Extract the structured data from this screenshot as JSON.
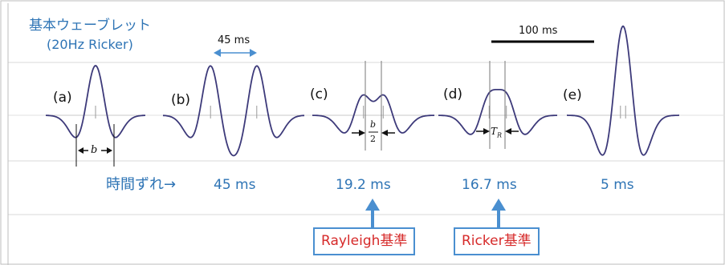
{
  "title": {
    "line1": "基本ウェーブレット",
    "line2": "(20Hz Ricker)"
  },
  "panels": [
    {
      "label": "(a)",
      "shift": ""
    },
    {
      "label": "(b)",
      "shift": "45 ms"
    },
    {
      "label": "(c)",
      "shift": "19.2 ms"
    },
    {
      "label": "(d)",
      "shift": "16.7 ms"
    },
    {
      "label": "(e)",
      "shift": "5 ms"
    }
  ],
  "annotations": {
    "separation_b": "45 ms",
    "scale_bar": "100 ms",
    "width_b": "b",
    "half_b_num": "b",
    "half_b_den": "2",
    "tr": "T",
    "tr_sub": "R"
  },
  "shift_row_label": "時間ずれ→",
  "criteria": {
    "rayleigh": "Rayleigh基準",
    "ricker": "Ricker基準"
  },
  "colors": {
    "wave": "#3d3a7a",
    "blue_text": "#2e74b5",
    "red_text": "#d62a2a",
    "box_border": "#4a8fd0",
    "grid": "#d9d9d9"
  }
}
